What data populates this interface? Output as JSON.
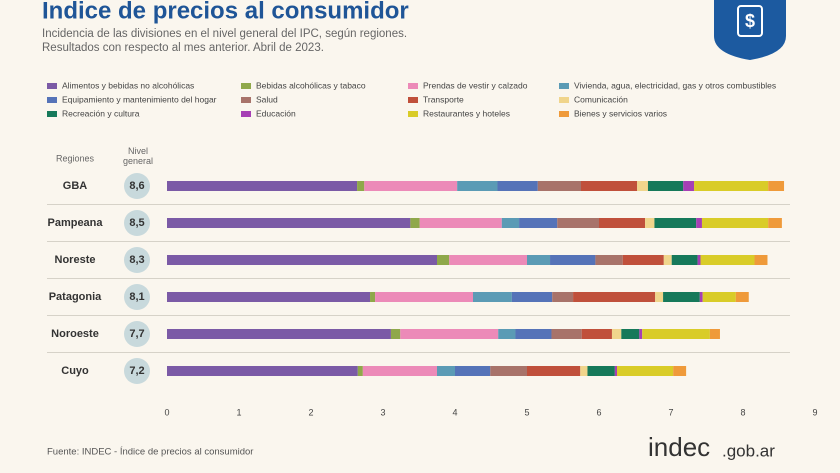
{
  "chart_data": {
    "type": "bar",
    "orientation": "horizontal",
    "stacked": true,
    "title": "Indice de precios al consumidor",
    "subtitle": [
      "Incidencia de las divisiones en el nivel general del IPC, según regiones.",
      "Resultados con respecto al mes anterior. Abril de 2023."
    ],
    "category_header": "Regiones",
    "total_header": "Nivel general",
    "categories": [
      "GBA",
      "Pampeana",
      "Noreste",
      "Patagonia",
      "Noroeste",
      "Cuyo"
    ],
    "totals": [
      {
        "value": 8.6,
        "label": "8,6"
      },
      {
        "value": 8.5,
        "label": "8,5"
      },
      {
        "value": 8.3,
        "label": "8,3"
      },
      {
        "value": 8.1,
        "label": "8,1"
      },
      {
        "value": 7.7,
        "label": "7,7"
      },
      {
        "value": 7.2,
        "label": "7,2"
      }
    ],
    "series": [
      {
        "name": "Alimentos y bebidas no alcohólicas",
        "color": "#7b5aa6",
        "values": [
          2.64,
          3.38,
          3.75,
          2.82,
          3.11,
          2.65
        ]
      },
      {
        "name": "Bebidas alcohólicas y tabaco",
        "color": "#8fa84a",
        "values": [
          0.1,
          0.13,
          0.17,
          0.07,
          0.13,
          0.07
        ]
      },
      {
        "name": "Prendas de vestir y calzado",
        "color": "#ec8ab8",
        "values": [
          1.29,
          1.14,
          1.08,
          1.36,
          1.36,
          1.03
        ]
      },
      {
        "name": "Vivienda, agua, electricidad, gas y otros combustibles",
        "color": "#5b9bb5",
        "values": [
          0.56,
          0.24,
          0.32,
          0.54,
          0.24,
          0.25
        ]
      },
      {
        "name": "Equipamiento y mantenimiento del hogar",
        "color": "#5573b8",
        "values": [
          0.56,
          0.53,
          0.63,
          0.56,
          0.5,
          0.49
        ]
      },
      {
        "name": "Salud",
        "color": "#a8736a",
        "values": [
          0.6,
          0.58,
          0.38,
          0.29,
          0.42,
          0.51
        ]
      },
      {
        "name": "Transporte",
        "color": "#c0503b",
        "values": [
          0.78,
          0.64,
          0.57,
          1.14,
          0.42,
          0.74
        ]
      },
      {
        "name": "Comunicación",
        "color": "#f0d58c",
        "values": [
          0.15,
          0.13,
          0.11,
          0.11,
          0.13,
          0.1
        ]
      },
      {
        "name": "Recreación y cultura",
        "color": "#16795a",
        "values": [
          0.49,
          0.58,
          0.36,
          0.51,
          0.25,
          0.38
        ]
      },
      {
        "name": "Educación",
        "color": "#a63fb5",
        "values": [
          0.15,
          0.08,
          0.04,
          0.04,
          0.04,
          0.03
        ]
      },
      {
        "name": "Restaurantes y hoteles",
        "color": "#d9cc28",
        "values": [
          1.03,
          0.92,
          0.75,
          0.46,
          0.94,
          0.78
        ]
      },
      {
        "name": "Bienes y servicios varios",
        "color": "#ef9a3a",
        "values": [
          0.22,
          0.19,
          0.18,
          0.18,
          0.14,
          0.18
        ]
      }
    ],
    "xlim": [
      0,
      9
    ],
    "xticks": [
      0,
      1,
      2,
      3,
      4,
      5,
      6,
      7,
      8,
      9
    ],
    "grid": false,
    "legend": "top",
    "source": "Fuente: INDEC - Índice de precios al consumidor"
  },
  "brand": {
    "name": "indec",
    "domain": ".gob.ar"
  }
}
